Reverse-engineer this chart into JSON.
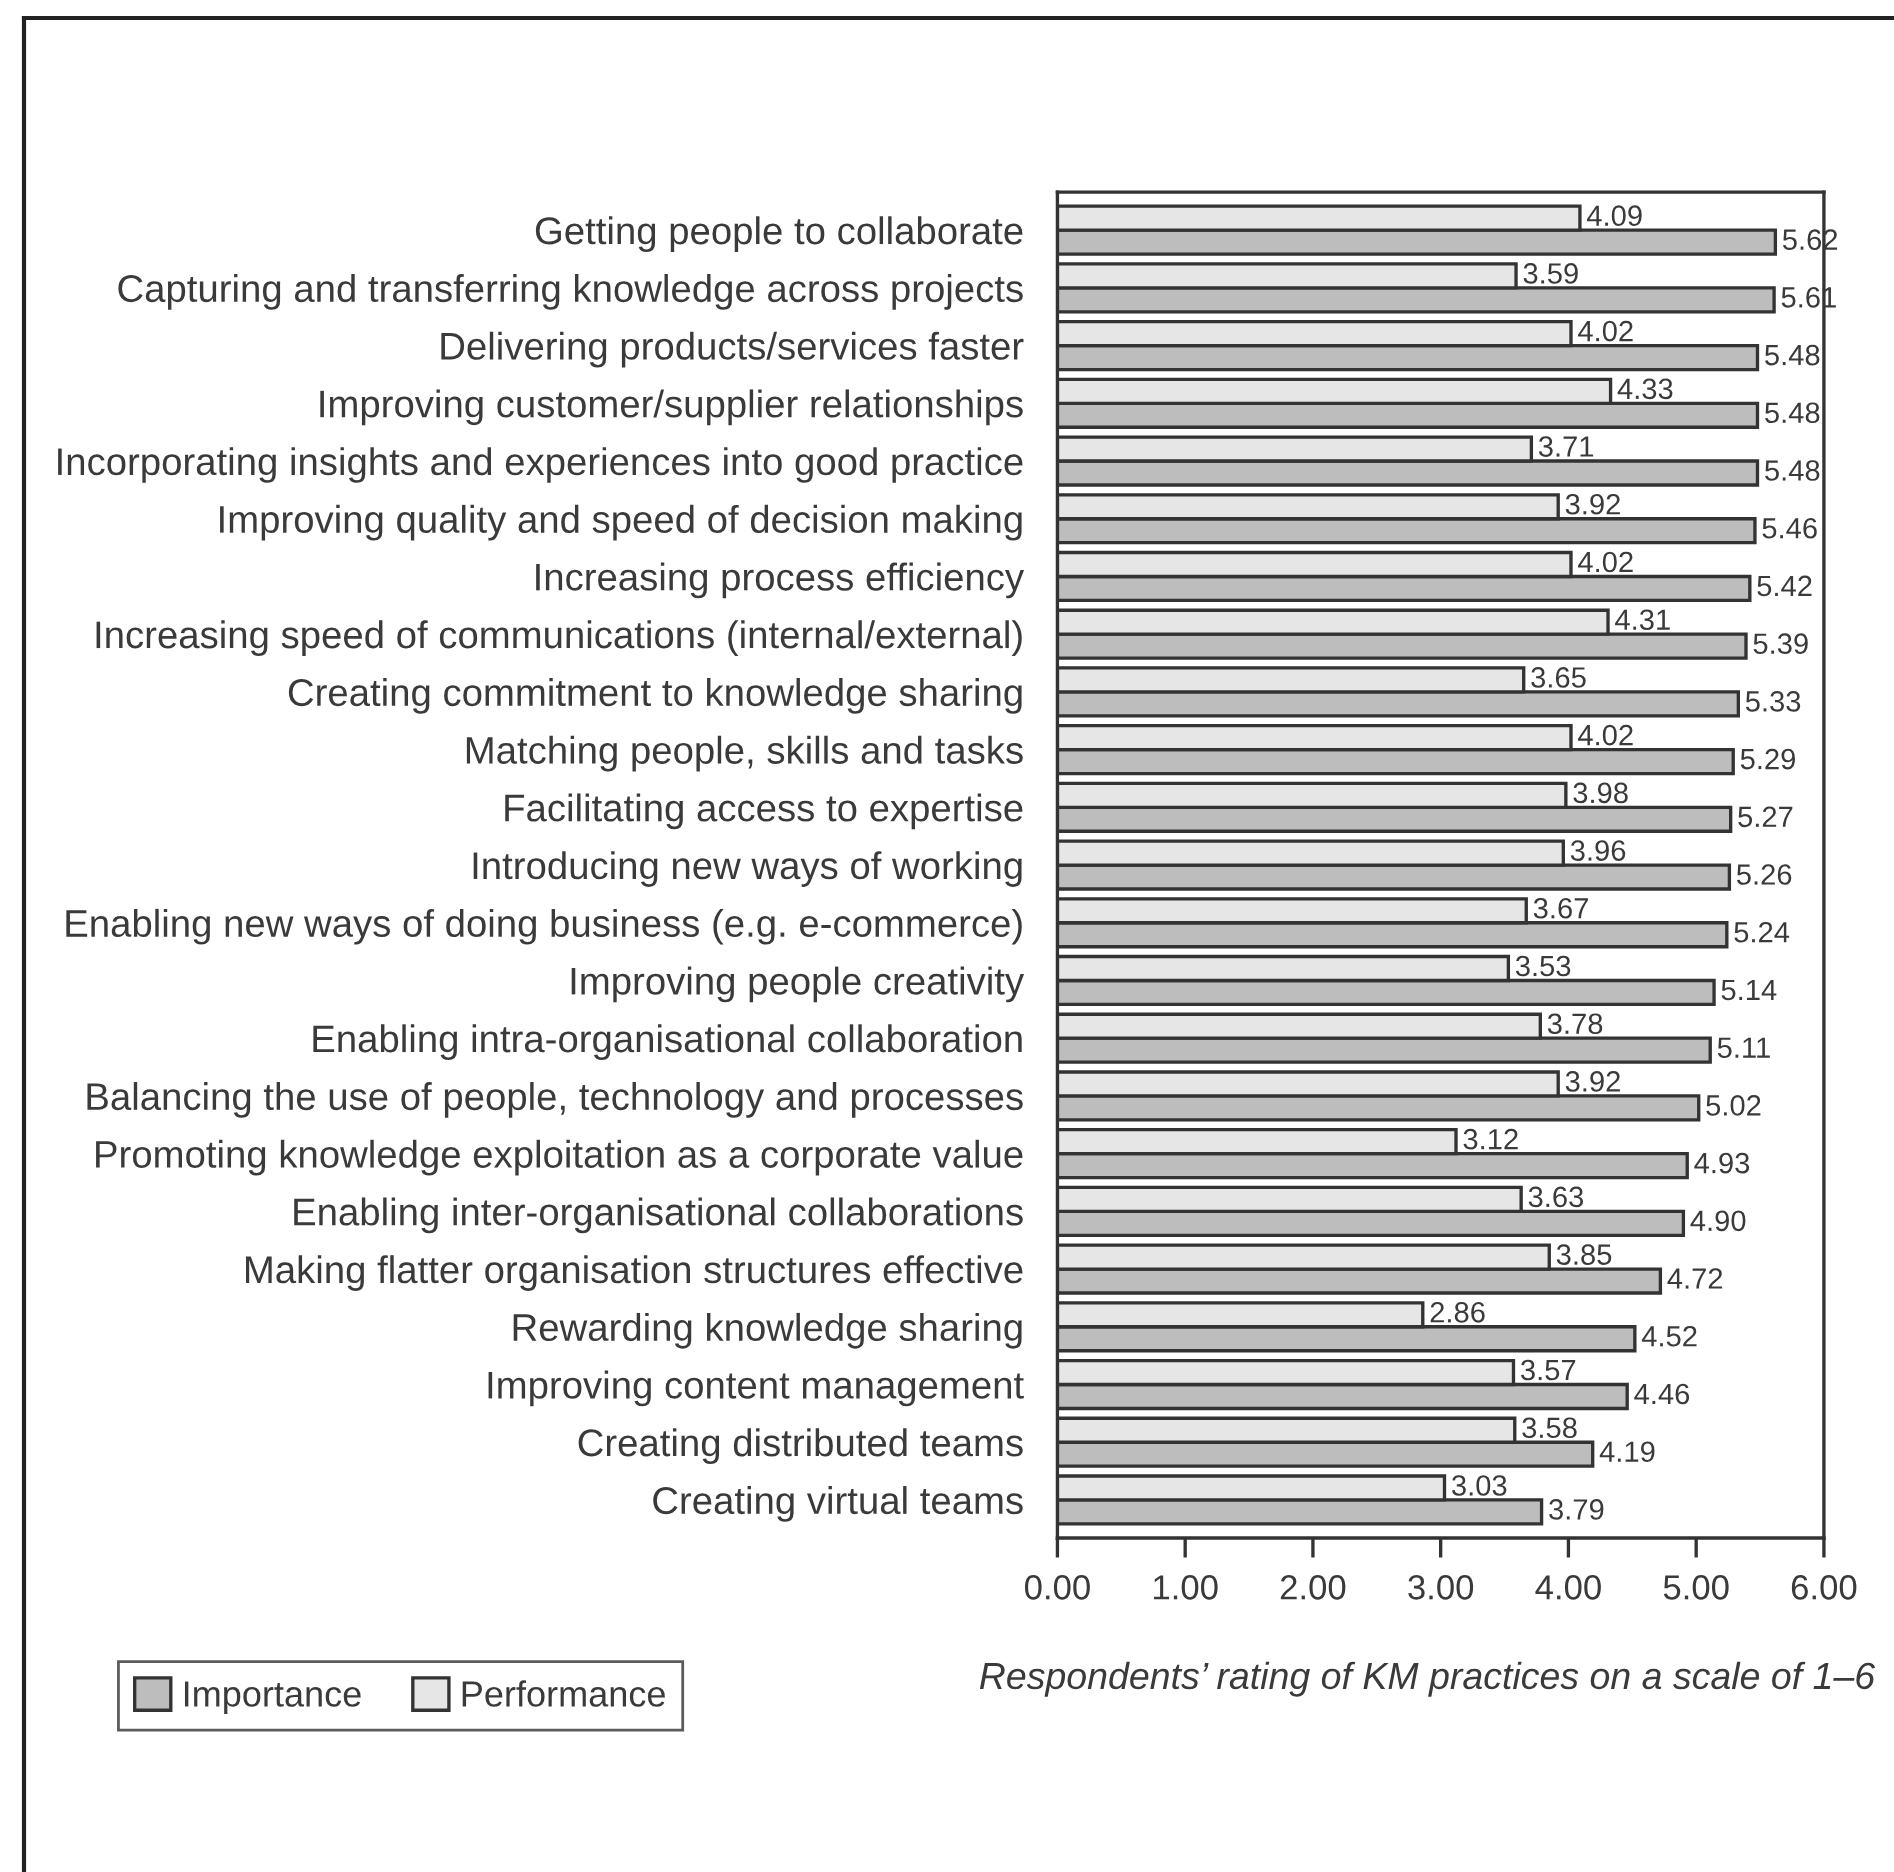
{
  "chart_data": {
    "type": "bar",
    "orientation": "horizontal",
    "categories": [
      "Getting people to collaborate",
      "Capturing and transferring knowledge across projects",
      "Delivering products/services faster",
      "Improving customer/supplier relationships",
      "Incorporating insights and experiences into good practice",
      "Improving quality and speed of decision making",
      "Increasing process efficiency",
      "Increasing speed of communications (internal/external)",
      "Creating commitment to knowledge sharing",
      "Matching people, skills and tasks",
      "Facilitating access to expertise",
      "Introducing new ways of working",
      "Enabling new ways of doing business (e.g. e-commerce)",
      "Improving people creativity",
      "Enabling intra-organisational collaboration",
      "Balancing the use of people, technology and processes",
      "Promoting knowledge exploitation as a corporate value",
      "Enabling inter-organisational collaborations",
      "Making flatter organisation structures effective",
      "Rewarding knowledge sharing",
      "Improving content management",
      "Creating distributed teams",
      "Creating virtual teams"
    ],
    "series": [
      {
        "name": "Importance",
        "color": "#bdbdbd",
        "values": [
          5.62,
          5.61,
          5.48,
          5.48,
          5.48,
          5.46,
          5.42,
          5.39,
          5.33,
          5.29,
          5.27,
          5.26,
          5.24,
          5.14,
          5.11,
          5.02,
          4.93,
          4.9,
          4.72,
          4.52,
          4.46,
          4.19,
          3.79
        ],
        "value_labels": [
          "5.62",
          "5.61",
          "5.48",
          "5.48",
          "5.48",
          "5.46",
          "5.42",
          "5.39",
          "5.33",
          "5.29",
          "5.27",
          "5.26",
          "5.24",
          "5.14",
          "5.11",
          "5.02",
          "4.93",
          "4.90",
          "4.72",
          "4.52",
          "4.46",
          "4.19",
          "3.79"
        ]
      },
      {
        "name": "Performance",
        "color": "#e6e6e6",
        "values": [
          4.09,
          3.59,
          4.02,
          4.33,
          3.71,
          3.92,
          4.02,
          4.31,
          3.65,
          4.02,
          3.98,
          3.96,
          3.67,
          3.53,
          3.78,
          3.92,
          3.12,
          3.63,
          3.85,
          2.86,
          3.57,
          3.58,
          3.03
        ],
        "value_labels": [
          "4.09",
          "3.59",
          "4.02",
          "4.33",
          "3.71",
          "3.92",
          "4.02",
          "4.31",
          "3.65",
          "4.02",
          "3.98",
          "3.96",
          "3.67",
          "3.53",
          "3.78",
          "3.92",
          "3.12",
          "3.63",
          "3.85",
          "2.86",
          "3.57",
          "3.58",
          "3.03"
        ]
      }
    ],
    "xlim": [
      0,
      6
    ],
    "xticks": [
      {
        "value": 0,
        "label": "0.00"
      },
      {
        "value": 1,
        "label": "1.00"
      },
      {
        "value": 2,
        "label": "2.00"
      },
      {
        "value": 3,
        "label": "3.00"
      },
      {
        "value": 4,
        "label": "4.00"
      },
      {
        "value": 5,
        "label": "5.00"
      },
      {
        "value": 6,
        "label": "6.00"
      }
    ],
    "annotations": [
      "Respondents’ rating of KM practices on a scale of 1–6"
    ],
    "legend": "bottom left",
    "grid": false
  }
}
